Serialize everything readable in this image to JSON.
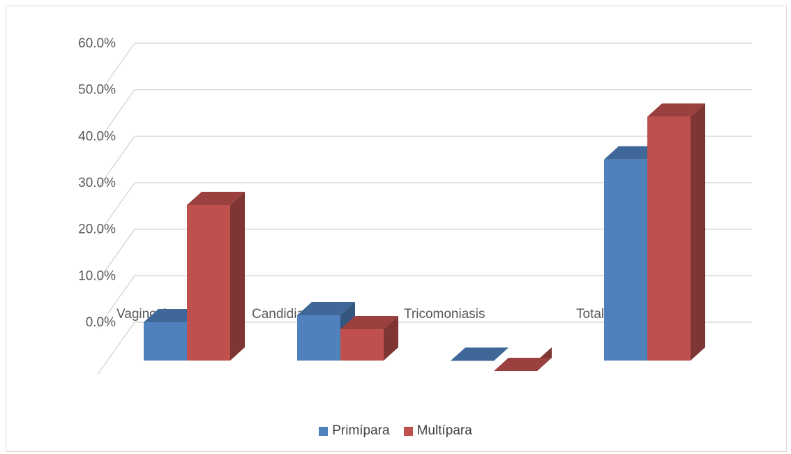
{
  "chart_data": {
    "type": "bar",
    "categories": [
      "Vaginosis",
      "Candidiasis",
      "Tricomoniasis",
      "Total"
    ],
    "series": [
      {
        "name": "Primípara",
        "values": [
          10.8,
          12.3,
          2.5,
          45.8
        ],
        "color": "#4F81BD"
      },
      {
        "name": "Multípara",
        "values": [
          36.0,
          9.3,
          0.3,
          55.0
        ],
        "color": "#C0504D"
      }
    ],
    "title": "",
    "xlabel": "",
    "ylabel": "",
    "ylim": [
      0,
      60
    ],
    "yticks": [
      "0.0%",
      "10.0%",
      "20.0%",
      "30.0%",
      "40.0%",
      "50.0%",
      "60.0%"
    ],
    "grid": true,
    "three_d": true,
    "legend_position": "bottom"
  }
}
